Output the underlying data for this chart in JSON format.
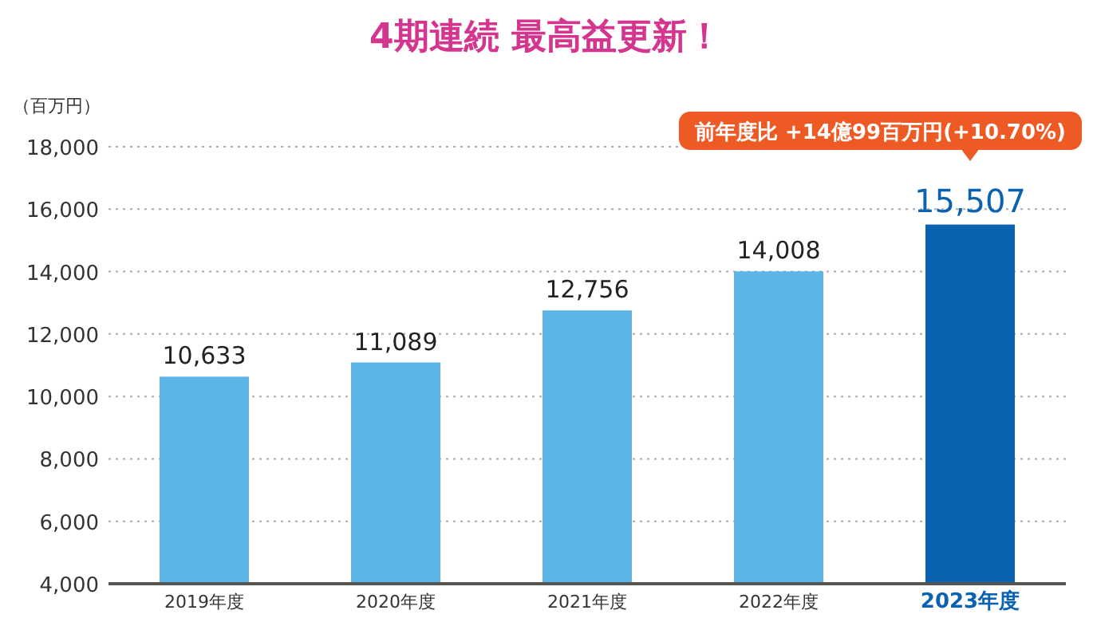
{
  "chart_data": {
    "type": "bar",
    "title": "4期連続 最高益更新！",
    "ylabel": "（百万円）",
    "categories": [
      "2019年度",
      "2020年度",
      "2021年度",
      "2022年度",
      "2023年度"
    ],
    "values": [
      10633,
      11089,
      12756,
      14008,
      15507
    ],
    "colors": [
      "#5db4e6",
      "#5db4e6",
      "#5db4e6",
      "#5db4e6",
      "#0a62b0"
    ],
    "value_labels": [
      "10,633",
      "11,089",
      "12,756",
      "14,008",
      "15,507"
    ],
    "ylim": [
      4000,
      18000
    ],
    "yticks": [
      {
        "value": 4000,
        "label": "4,000"
      },
      {
        "value": 6000,
        "label": "6,000"
      },
      {
        "value": 8000,
        "label": "8,000"
      },
      {
        "value": 10000,
        "label": "10,000"
      },
      {
        "value": 12000,
        "label": "12,000"
      },
      {
        "value": 14000,
        "label": "14,000"
      },
      {
        "value": 16000,
        "label": "16,000"
      },
      {
        "value": 18000,
        "label": "18,000"
      }
    ],
    "grid": "y",
    "annotations": [
      "前年度比 +14億99百万円(+10.70%)"
    ]
  }
}
